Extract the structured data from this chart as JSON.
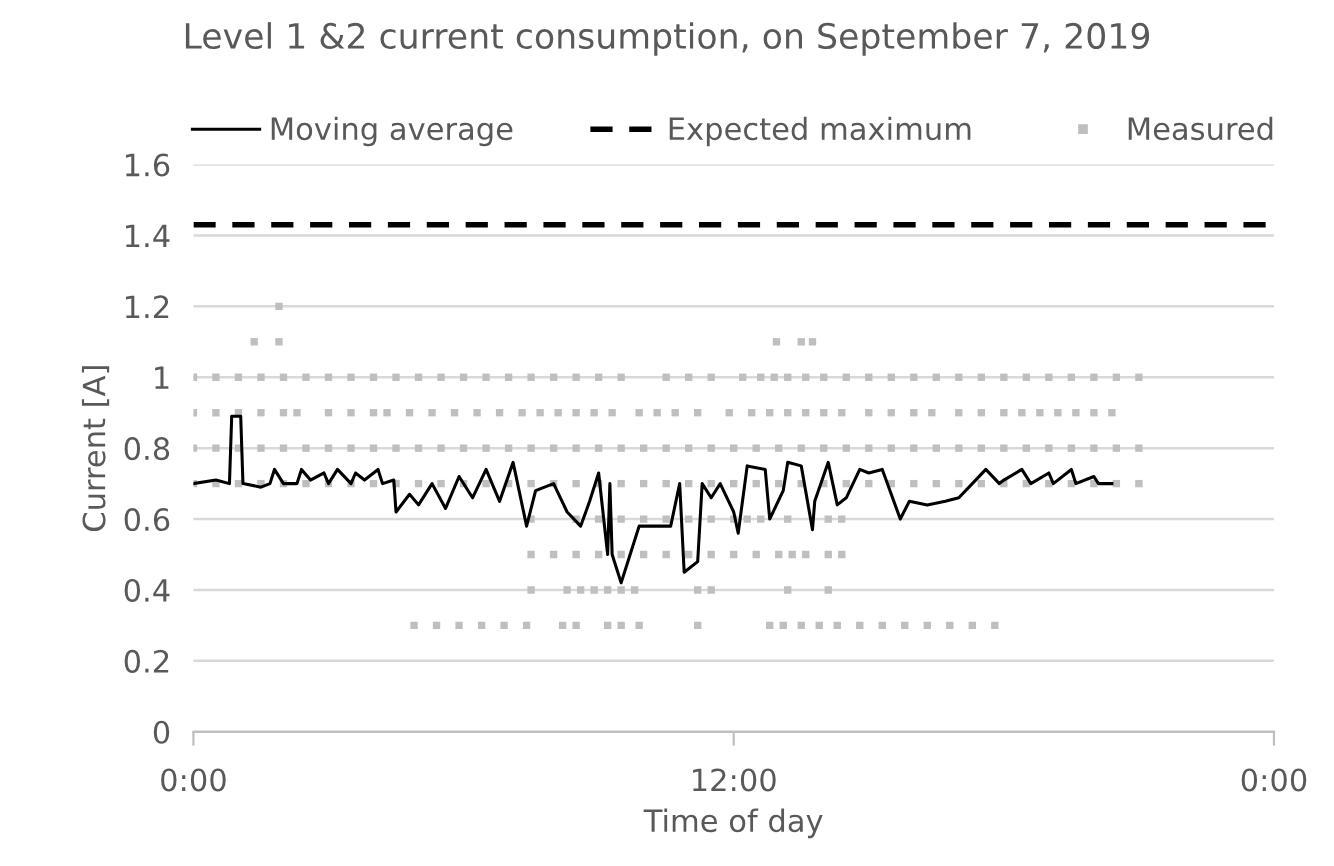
{
  "chart_data": {
    "type": "line",
    "title": "Level 1 &2 current consumption, on September 7, 2019",
    "xlabel": "Time of day",
    "ylabel": "Current [A]",
    "xlim": [
      0,
      24
    ],
    "xticks": [
      {
        "value": 0,
        "label": "0:00"
      },
      {
        "value": 12,
        "label": "12:00"
      },
      {
        "value": 24,
        "label": "0:00"
      }
    ],
    "ylim": [
      0,
      1.6
    ],
    "yticks": [
      0,
      0.2,
      0.4,
      0.6,
      0.8,
      1,
      1.2,
      1.4,
      1.6
    ],
    "grid": "y",
    "legend": "top",
    "series": [
      {
        "name": "Moving average",
        "color": "#000000",
        "line_style": "solid",
        "marker": "none",
        "x": [
          0,
          0.5,
          0.8,
          0.85,
          1.05,
          1.1,
          1.5,
          1.7,
          1.8,
          2.0,
          2.3,
          2.4,
          2.6,
          2.9,
          3.0,
          3.2,
          3.5,
          3.6,
          3.8,
          4.1,
          4.2,
          4.45,
          4.5,
          4.8,
          5.0,
          5.3,
          5.6,
          5.9,
          6.2,
          6.5,
          6.8,
          7.1,
          7.4,
          7.6,
          8.0,
          8.3,
          8.6,
          8.8,
          9.0,
          9.2,
          9.25,
          9.3,
          9.5,
          9.7,
          9.9,
          10.2,
          10.6,
          10.8,
          10.9,
          11.2,
          11.3,
          11.5,
          11.7,
          12.0,
          12.1,
          12.3,
          12.7,
          12.8,
          13.1,
          13.2,
          13.5,
          13.75,
          13.8,
          14.1,
          14.3,
          14.5,
          14.8,
          15.0,
          15.3,
          15.7,
          15.9,
          16.3,
          16.7,
          17.0,
          17.3,
          17.6,
          17.9,
          18.0,
          18.4,
          18.6,
          19.0,
          19.1,
          19.5,
          19.6,
          20.0,
          20.1,
          20.4
        ],
        "values": [
          0.7,
          0.71,
          0.7,
          0.89,
          0.89,
          0.7,
          0.69,
          0.7,
          0.74,
          0.7,
          0.7,
          0.74,
          0.71,
          0.73,
          0.7,
          0.74,
          0.7,
          0.73,
          0.71,
          0.74,
          0.7,
          0.71,
          0.62,
          0.67,
          0.64,
          0.7,
          0.63,
          0.72,
          0.66,
          0.74,
          0.65,
          0.76,
          0.58,
          0.68,
          0.7,
          0.62,
          0.58,
          0.65,
          0.73,
          0.5,
          0.7,
          0.5,
          0.42,
          0.5,
          0.58,
          0.58,
          0.58,
          0.7,
          0.45,
          0.48,
          0.7,
          0.66,
          0.7,
          0.62,
          0.56,
          0.75,
          0.74,
          0.6,
          0.68,
          0.76,
          0.75,
          0.57,
          0.65,
          0.76,
          0.64,
          0.66,
          0.74,
          0.73,
          0.74,
          0.6,
          0.65,
          0.64,
          0.65,
          0.66,
          0.7,
          0.74,
          0.7,
          0.71,
          0.74,
          0.7,
          0.73,
          0.7,
          0.74,
          0.7,
          0.72,
          0.7,
          0.7
        ]
      },
      {
        "name": "Expected maximum",
        "color": "#000000",
        "line_style": "dashed",
        "marker": "none",
        "x": [
          0,
          24
        ],
        "values": [
          1.43,
          1.43
        ]
      },
      {
        "name": "Measured",
        "type": "scatter",
        "color": "#bfbfbf",
        "marker": "square",
        "x": [
          0,
          0.5,
          1,
          1.5,
          2,
          2.5,
          3,
          3.5,
          4,
          4.5,
          5,
          5.5,
          6,
          6.5,
          7,
          7.5,
          8,
          8.5,
          9,
          9.5,
          10,
          10.5,
          11,
          11.5,
          12,
          12.5,
          13,
          13.5,
          14,
          14.5,
          15,
          15.5,
          16,
          16.5,
          17,
          17.5,
          18,
          18.5,
          19,
          19.5,
          20,
          20.5,
          21,
          0,
          0.5,
          1,
          1.5,
          2,
          2.5,
          3,
          3.5,
          4,
          4.5,
          5,
          5.5,
          6,
          6.5,
          7,
          7.5,
          8,
          8.5,
          9,
          9.5,
          10,
          10.5,
          11,
          11.5,
          12,
          12.5,
          13,
          13.5,
          14,
          14.5,
          15,
          15.5,
          16,
          16.5,
          17,
          17.5,
          18,
          18.5,
          19,
          19.5,
          20,
          20.5,
          21,
          0,
          0.5,
          1,
          1.5,
          2,
          2.5,
          3,
          3.5,
          4,
          4.5,
          5,
          5.5,
          6,
          6.5,
          7,
          7.5,
          8,
          8.5,
          9,
          9.5,
          10.5,
          11,
          11.5,
          12.2,
          12.6,
          12.9,
          13.2,
          13.6,
          14,
          14.5,
          15,
          15.5,
          16,
          16.5,
          17,
          17.5,
          18,
          18.5,
          19,
          19.5,
          20,
          20.5,
          21,
          0,
          0.5,
          1,
          1.5,
          2,
          2.3,
          3,
          3.5,
          4,
          4.3,
          4.8,
          5.3,
          5.8,
          6.3,
          6.8,
          7.3,
          7.7,
          8.1,
          8.5,
          8.9,
          9.3,
          9.9,
          10.3,
          10.7,
          11.2,
          11.9,
          12.4,
          12.8,
          13.2,
          13.6,
          14,
          14.4,
          15,
          15.5,
          16,
          16.4,
          17,
          17.5,
          18,
          18.4,
          18.8,
          19.2,
          19.6,
          20,
          20.4,
          7.5,
          8.5,
          9,
          9.5,
          10,
          10.5,
          11,
          11.5,
          12,
          12.3,
          12.6,
          13.2,
          14.1,
          14.4,
          7.5,
          8,
          8.5,
          9,
          9.5,
          10,
          10.5,
          11,
          11.5,
          12,
          12.5,
          13,
          13.3,
          13.6,
          14.1,
          14.4,
          7.5,
          8.3,
          8.6,
          8.9,
          9.2,
          9.5,
          9.8,
          11.2,
          11.5,
          13.2,
          14.1,
          4.9,
          5.4,
          5.9,
          6.4,
          6.9,
          7.4,
          8.2,
          8.5,
          9.2,
          9.5,
          9.9,
          11.2,
          12.8,
          13.1,
          13.5,
          13.9,
          14.3,
          14.8,
          15.3,
          15.8,
          16.3,
          16.8,
          17.3,
          17.8,
          1.35,
          1.9,
          12.95,
          13.5,
          13.75,
          1.9
        ],
        "values": [
          0.7,
          0.7,
          0.7,
          0.7,
          0.7,
          0.7,
          0.7,
          0.7,
          0.7,
          0.7,
          0.7,
          0.7,
          0.7,
          0.7,
          0.7,
          0.7,
          0.7,
          0.7,
          0.7,
          0.7,
          0.7,
          0.7,
          0.7,
          0.7,
          0.7,
          0.7,
          0.7,
          0.7,
          0.7,
          0.7,
          0.7,
          0.7,
          0.7,
          0.7,
          0.7,
          0.7,
          0.7,
          0.7,
          0.7,
          0.7,
          0.7,
          0.7,
          0.7,
          0.8,
          0.8,
          0.8,
          0.8,
          0.8,
          0.8,
          0.8,
          0.8,
          0.8,
          0.8,
          0.8,
          0.8,
          0.8,
          0.8,
          0.8,
          0.8,
          0.8,
          0.8,
          0.8,
          0.8,
          0.8,
          0.8,
          0.8,
          0.8,
          0.8,
          0.8,
          0.8,
          0.8,
          0.8,
          0.8,
          0.8,
          0.8,
          0.8,
          0.8,
          0.8,
          0.8,
          0.8,
          0.8,
          0.8,
          0.8,
          0.8,
          0.8,
          0.8,
          1,
          1,
          1,
          1,
          1,
          1,
          1,
          1,
          1,
          1,
          1,
          1,
          1,
          1,
          1,
          1,
          1,
          1,
          1,
          1,
          1,
          1,
          1,
          1,
          1,
          1,
          1,
          1,
          1,
          1,
          1,
          1,
          1,
          1,
          1,
          1,
          1,
          1,
          1,
          1,
          1,
          1,
          1,
          0.9,
          0.9,
          0.9,
          0.9,
          0.9,
          0.9,
          0.9,
          0.9,
          0.9,
          0.9,
          0.9,
          0.9,
          0.9,
          0.9,
          0.9,
          0.9,
          0.9,
          0.9,
          0.9,
          0.9,
          0.9,
          0.9,
          0.9,
          0.9,
          0.9,
          0.9,
          0.9,
          0.9,
          0.9,
          0.9,
          0.9,
          0.9,
          0.9,
          0.9,
          0.9,
          0.9,
          0.9,
          0.9,
          0.9,
          0.9,
          0.9,
          0.9,
          0.9,
          0.9,
          0.9,
          0.6,
          0.6,
          0.6,
          0.6,
          0.6,
          0.6,
          0.6,
          0.6,
          0.6,
          0.6,
          0.6,
          0.6,
          0.6,
          0.6,
          0.5,
          0.5,
          0.5,
          0.5,
          0.5,
          0.5,
          0.5,
          0.5,
          0.5,
          0.5,
          0.5,
          0.5,
          0.5,
          0.5,
          0.5,
          0.5,
          0.4,
          0.4,
          0.4,
          0.4,
          0.4,
          0.4,
          0.4,
          0.4,
          0.4,
          0.4,
          0.4,
          0.3,
          0.3,
          0.3,
          0.3,
          0.3,
          0.3,
          0.3,
          0.3,
          0.3,
          0.3,
          0.3,
          0.3,
          0.3,
          0.3,
          0.3,
          0.3,
          0.3,
          0.3,
          0.3,
          0.3,
          0.3,
          0.3,
          0.3,
          0.3,
          1.1,
          1.1,
          1.1,
          1.1,
          1.1,
          1.2
        ]
      }
    ]
  }
}
